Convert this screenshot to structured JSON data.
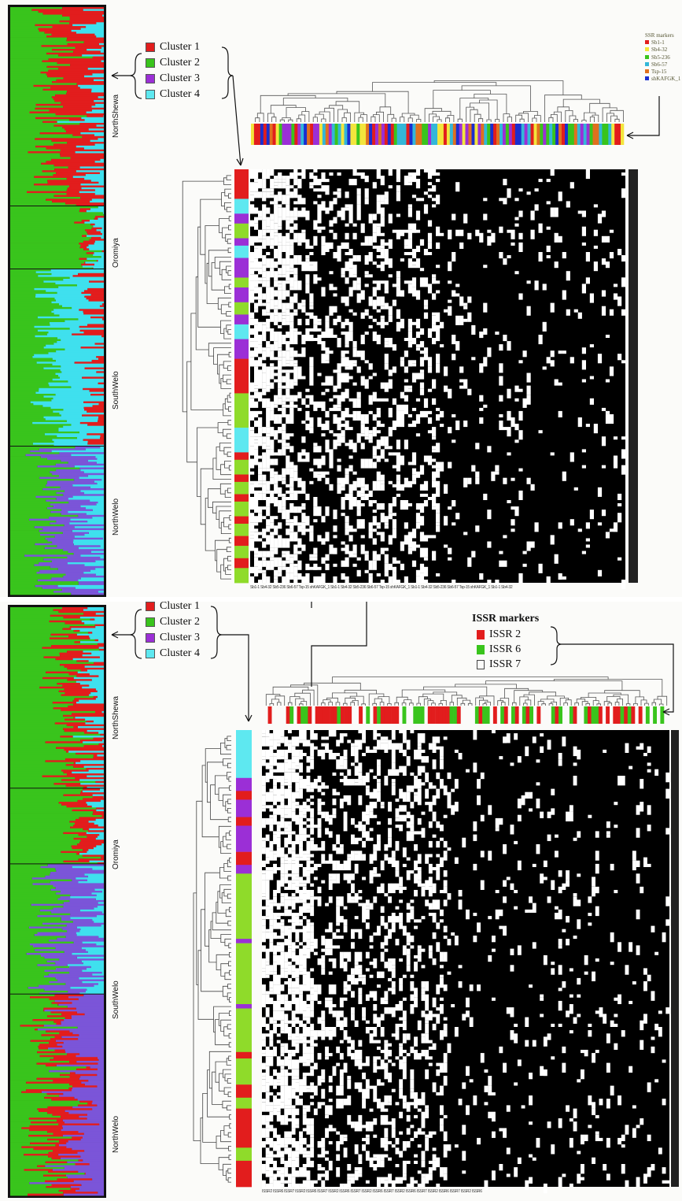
{
  "panels": [
    {
      "id": "ssr",
      "cluster_legend": [
        {
          "label": "Cluster 1",
          "color": "#e21d1d"
        },
        {
          "label": "Cluster 2",
          "color": "#39c41c"
        },
        {
          "label": "Cluster 3",
          "color": "#9b2fd6"
        },
        {
          "label": "Cluster 4",
          "color": "#5ee8f0"
        }
      ],
      "populations": [
        "NorthShewa",
        "Oromiya",
        "SouthWelo",
        "NorthWelo"
      ],
      "marker_legend_title": "SSR markers",
      "markers": [
        {
          "label": "Sb1-1",
          "color": "#e21d1d"
        },
        {
          "label": "Sb4-32",
          "color": "#f3e53c"
        },
        {
          "label": "Sb5-236",
          "color": "#39c41c"
        },
        {
          "label": "Sb6-57",
          "color": "#33b7d8"
        },
        {
          "label": "Tsp-15",
          "color": "#e0701e"
        },
        {
          "label": "shKAFGK_1",
          "color": "#1a2ed0"
        }
      ],
      "heatmap_row_labels": "Sb1-1 Sb4-32 Sb5-236 Sb6-57 Tsp-15 shKAFGK_1 Sb1-1 Sb4-32 Sb5-236 Sb6-57 Tsp-15 shKAFGK_1 Sb1-1 Sb4-32 Sb5-236 Sb6-57 Tsp-15 shKAFGK_1 Sb1-1 Sb4-32"
    },
    {
      "id": "issr",
      "cluster_legend": [
        {
          "label": "Cluster 1",
          "color": "#e21d1d"
        },
        {
          "label": "Cluster 2",
          "color": "#39c41c"
        },
        {
          "label": "Cluster 3",
          "color": "#9b2fd6"
        },
        {
          "label": "Cluster 4",
          "color": "#5ee8f0"
        }
      ],
      "populations": [
        "NorthShewa",
        "Oromiya",
        "SouthWelo",
        "NorthWelo"
      ],
      "marker_legend_title": "ISSR markers",
      "markers": [
        {
          "label": "ISSR 2",
          "color": "#e21d1d"
        },
        {
          "label": "ISSR 6",
          "color": "#39c41c"
        },
        {
          "label": "ISSR 7",
          "color": "#ffffff",
          "hollow": true
        }
      ],
      "heatmap_row_labels": "ISSR2 ISSR6 ISSR7 ISSR2 ISSR6 ISSR7 ISSR2 ISSR6 ISSR7 ISSR2 ISSR6 ISSR7 ISSR2 ISSR6 ISSR7 ISSR2 ISSR6 ISSR7 ISSR2 ISSR6"
    }
  ]
}
